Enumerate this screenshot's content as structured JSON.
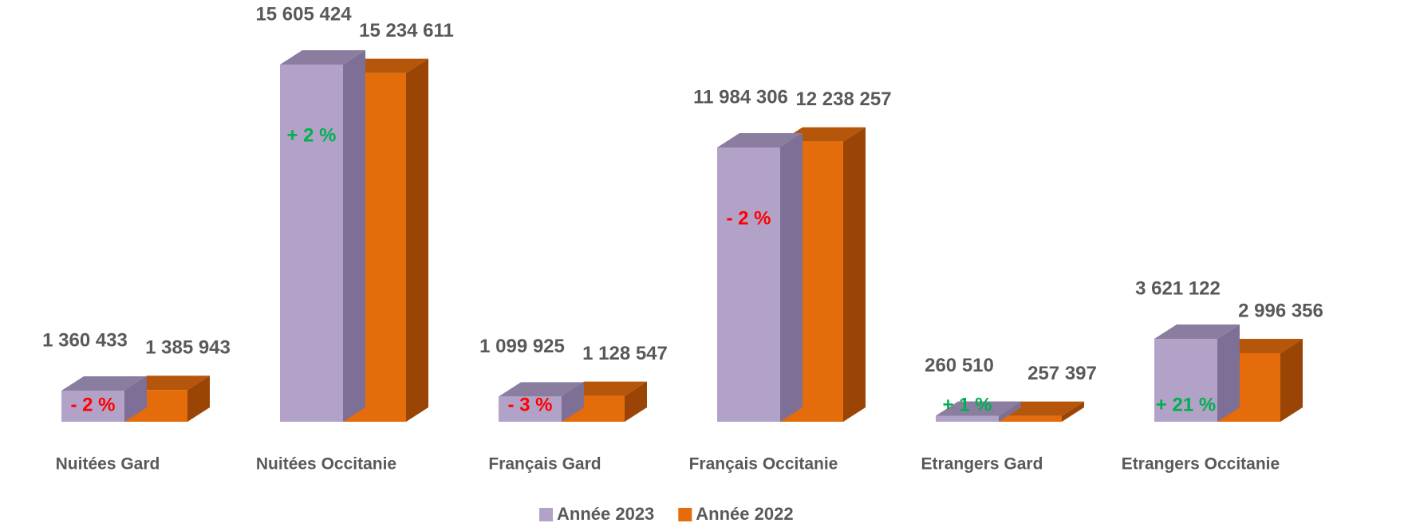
{
  "chart_data": {
    "type": "bar3d",
    "categories": [
      "Nuitées Gard",
      "Nuitées Occitanie",
      "Français Gard",
      "Français Occitanie",
      "Etrangers Gard",
      "Etrangers Occitanie"
    ],
    "series": [
      {
        "name": "Année 2023",
        "color": "#b3a2c7",
        "top_color": "#8b7da0",
        "side_color": "#7e6f96",
        "values": [
          1360433,
          15605424,
          1099925,
          11984306,
          260510,
          3621122
        ],
        "value_labels": [
          "1 360 433",
          "15 605 424",
          "1 099 925",
          "11 984 306",
          "260 510",
          "3 621 122"
        ]
      },
      {
        "name": "Année 2022",
        "color": "#e46c0a",
        "top_color": "#b5560a",
        "side_color": "#9a4506",
        "values": [
          1385943,
          15234611,
          1128547,
          12238257,
          257397,
          2996356
        ],
        "value_labels": [
          "1 385 943",
          "15 234 611",
          "1 128 547",
          "12 238 257",
          "257 397",
          "2 996 356"
        ]
      }
    ],
    "annotations": [
      {
        "text": "- 2 %",
        "color": "#ff0000"
      },
      {
        "text": "+ 2 %",
        "color": "#00b050"
      },
      {
        "text": "- 3 %",
        "color": "#ff0000"
      },
      {
        "text": "- 2 %",
        "color": "#ff0000"
      },
      {
        "text": "+ 1 %",
        "color": "#00b050"
      },
      {
        "text": "+ 21 %",
        "color": "#00b050"
      }
    ],
    "legend": "bottom"
  }
}
